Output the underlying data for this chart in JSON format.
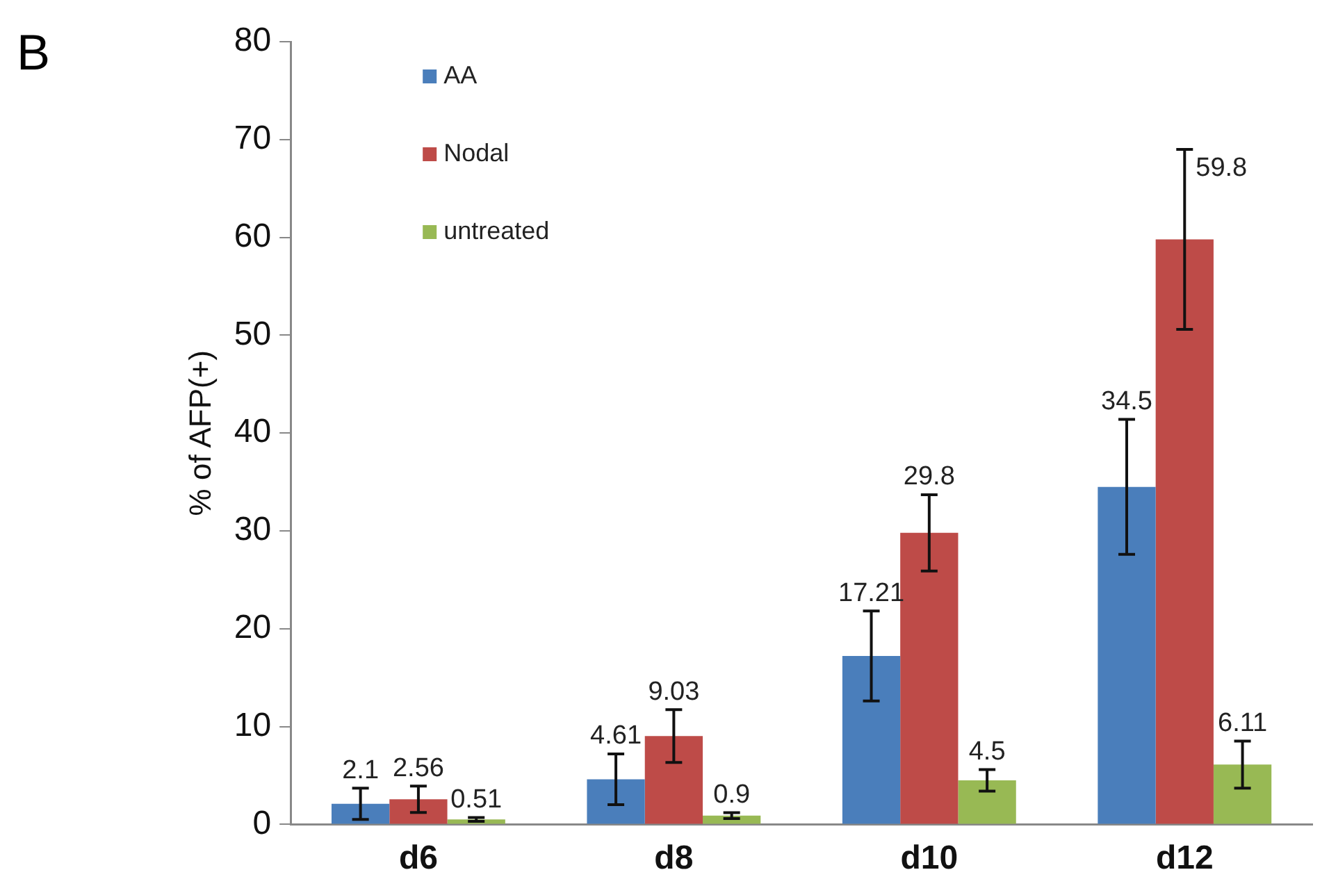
{
  "chart_data": {
    "type": "bar",
    "title": "B",
    "ylabel": "% of AFP(+)",
    "categories": [
      "d6",
      "d8",
      "d10",
      "d12"
    ],
    "series": [
      {
        "name": "AA",
        "color": "#4a7ebb",
        "values": [
          2.1,
          4.61,
          17.21,
          34.5
        ],
        "errors": [
          1.6,
          2.6,
          4.6,
          6.9
        ]
      },
      {
        "name": "Nodal",
        "color": "#be4b48",
        "values": [
          2.56,
          9.03,
          29.8,
          59.8
        ],
        "errors": [
          1.35,
          2.7,
          3.9,
          9.2
        ]
      },
      {
        "name": "untreated",
        "color": "#98b954",
        "values": [
          0.51,
          0.9,
          4.5,
          6.11
        ],
        "errors": [
          0.2,
          0.3,
          1.1,
          2.4
        ]
      }
    ],
    "ylim": [
      0,
      80
    ],
    "yticks": [
      0,
      10,
      20,
      30,
      40,
      50,
      60,
      70,
      80
    ],
    "grid": false,
    "legend": "top left",
    "data_labels": true
  }
}
